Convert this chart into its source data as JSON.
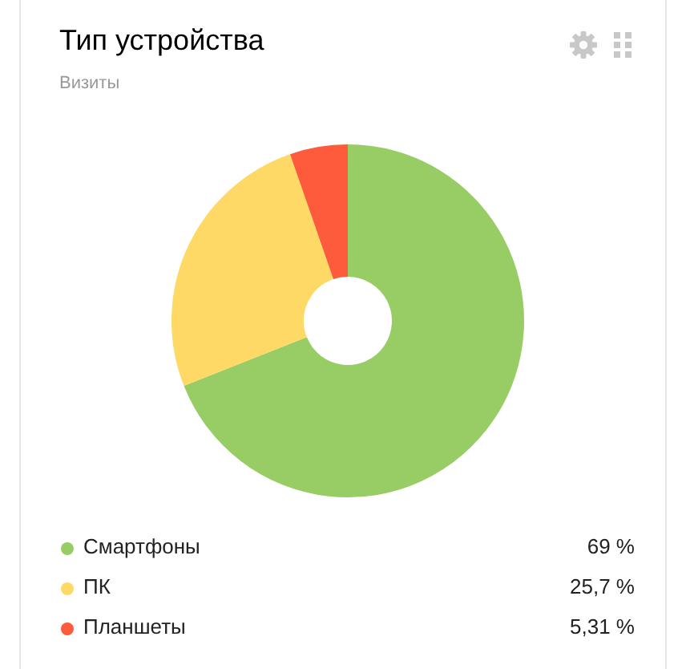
{
  "chart_data": {
    "type": "donut",
    "title": "Тип устройства",
    "subtitle": "Визиты",
    "categories": [
      "Смартфоны",
      "ПК",
      "Планшеты"
    ],
    "values": [
      69,
      25.7,
      5.31
    ],
    "colors": [
      "#98cc64",
      "#fed966",
      "#fe5a3c"
    ],
    "value_labels": [
      "69 %",
      "25,7 %",
      "5,31 %"
    ],
    "legend": "bottom"
  }
}
